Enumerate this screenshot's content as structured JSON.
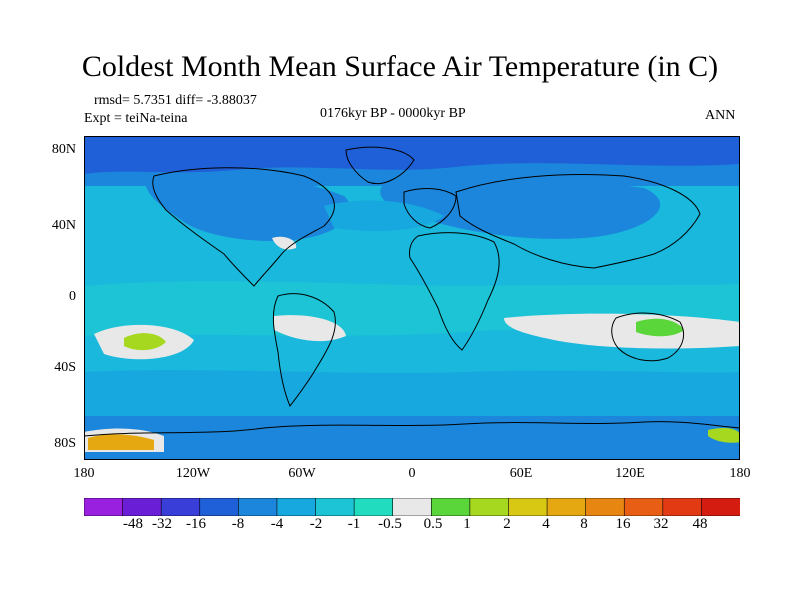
{
  "title": "Coldest Month Mean Surface Air Temperature (in C)",
  "stats": {
    "rmsd_diff": "rmsd= 5.7351 diff= -3.88037",
    "expt": "Expt = teiNa-teina",
    "period": "0176kyr BP - 0000kyr BP",
    "season": "ANN"
  },
  "axes": {
    "lat_ticks": [
      "80N",
      "40N",
      "0",
      "40S",
      "80S"
    ],
    "lon_ticks": [
      "180",
      "120W",
      "60W",
      "0",
      "60E",
      "120E",
      "180"
    ]
  },
  "colorbar": {
    "labels": [
      "-48",
      "-32",
      "-16",
      "-8",
      "-4",
      "-2",
      "-1",
      "-0.5",
      "0.5",
      "1",
      "2",
      "4",
      "8",
      "16",
      "32",
      "48"
    ],
    "colors": [
      "#9a20e0",
      "#6a1fd6",
      "#3a3ed8",
      "#1f5fd8",
      "#1c86dc",
      "#18a8e0",
      "#1cc4d6",
      "#22dcc0",
      "#e8e8e8",
      "#5ad63a",
      "#a6d820",
      "#d8c814",
      "#e6a810",
      "#e88612",
      "#e85e14",
      "#e23a12",
      "#d41c10"
    ]
  }
}
